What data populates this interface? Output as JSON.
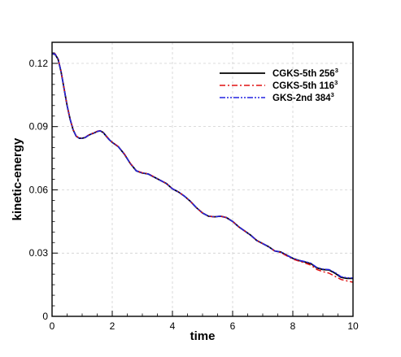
{
  "chart_data": {
    "type": "line",
    "title": "",
    "xlabel": "time",
    "ylabel": "kinetic-energy",
    "xlim": [
      0,
      10
    ],
    "ylim": [
      0,
      0.13
    ],
    "xticks": [
      0,
      2,
      4,
      6,
      8,
      10
    ],
    "xtick_labels": [
      "0",
      "2",
      "4",
      "6",
      "8",
      "10"
    ],
    "yticks": [
      0,
      0.03,
      0.06,
      0.09,
      0.12
    ],
    "ytick_labels": [
      "0",
      "0.03",
      "0.06",
      "0.09",
      "0.12"
    ],
    "grid": true,
    "legend_position": "top-right",
    "series": [
      {
        "name": "CGKS-5th 256",
        "name_sup": "3",
        "color": "#000000",
        "style": "solid",
        "x": [
          0,
          0.1,
          0.2,
          0.3,
          0.4,
          0.5,
          0.6,
          0.7,
          0.8,
          0.9,
          1.0,
          1.1,
          1.2,
          1.3,
          1.4,
          1.5,
          1.6,
          1.7,
          1.8,
          1.9,
          2.0,
          2.2,
          2.4,
          2.6,
          2.8,
          3.0,
          3.2,
          3.4,
          3.6,
          3.8,
          4.0,
          4.2,
          4.4,
          4.6,
          4.8,
          5.0,
          5.2,
          5.4,
          5.6,
          5.8,
          6.0,
          6.2,
          6.4,
          6.6,
          6.8,
          7.0,
          7.2,
          7.4,
          7.6,
          7.8,
          8.0,
          8.2,
          8.4,
          8.6,
          8.8,
          9.0,
          9.2,
          9.4,
          9.6,
          9.8,
          10.0
        ],
        "y": [
          0.1245,
          0.1243,
          0.122,
          0.116,
          0.108,
          0.1,
          0.0935,
          0.0885,
          0.0855,
          0.0845,
          0.0845,
          0.0848,
          0.0858,
          0.0865,
          0.087,
          0.0877,
          0.088,
          0.0872,
          0.0855,
          0.0838,
          0.0825,
          0.0805,
          0.077,
          0.0725,
          0.069,
          0.068,
          0.0675,
          0.066,
          0.0645,
          0.063,
          0.0605,
          0.059,
          0.057,
          0.0545,
          0.0515,
          0.049,
          0.0475,
          0.0472,
          0.0475,
          0.0468,
          0.045,
          0.0425,
          0.0405,
          0.0385,
          0.036,
          0.0345,
          0.033,
          0.031,
          0.0305,
          0.029,
          0.0275,
          0.0265,
          0.0258,
          0.025,
          0.023,
          0.0222,
          0.022,
          0.0205,
          0.0185,
          0.018,
          0.018
        ]
      },
      {
        "name": "CGKS-5th 116",
        "name_sup": "3",
        "color": "#e01010",
        "style": "dashdot",
        "x": [
          0,
          0.1,
          0.2,
          0.3,
          0.4,
          0.5,
          0.6,
          0.7,
          0.8,
          0.9,
          1.0,
          1.1,
          1.2,
          1.3,
          1.4,
          1.5,
          1.6,
          1.7,
          1.8,
          1.9,
          2.0,
          2.2,
          2.4,
          2.6,
          2.8,
          3.0,
          3.2,
          3.4,
          3.6,
          3.8,
          4.0,
          4.2,
          4.4,
          4.6,
          4.8,
          5.0,
          5.2,
          5.4,
          5.6,
          5.8,
          6.0,
          6.2,
          6.4,
          6.6,
          6.8,
          7.0,
          7.2,
          7.4,
          7.6,
          7.8,
          8.0,
          8.2,
          8.4,
          8.6,
          8.8,
          9.0,
          9.2,
          9.4,
          9.6,
          9.8,
          10.0
        ],
        "y": [
          0.1248,
          0.1246,
          0.1222,
          0.1162,
          0.1081,
          0.1001,
          0.0936,
          0.0886,
          0.0856,
          0.0846,
          0.0846,
          0.0849,
          0.0859,
          0.0866,
          0.0871,
          0.0878,
          0.0881,
          0.0873,
          0.0856,
          0.0839,
          0.0826,
          0.0806,
          0.0771,
          0.0726,
          0.0691,
          0.0681,
          0.0676,
          0.0661,
          0.0645,
          0.063,
          0.0605,
          0.059,
          0.057,
          0.0545,
          0.0515,
          0.049,
          0.0475,
          0.0472,
          0.0475,
          0.0468,
          0.045,
          0.0425,
          0.0405,
          0.0385,
          0.036,
          0.0345,
          0.033,
          0.031,
          0.0302,
          0.0287,
          0.0272,
          0.0262,
          0.0253,
          0.0243,
          0.0222,
          0.0212,
          0.0205,
          0.019,
          0.0175,
          0.0168,
          0.0162
        ]
      },
      {
        "name": "GKS-2nd 384",
        "name_sup": "3",
        "color": "#2424e0",
        "style": "dashdotdot",
        "x": [
          0,
          0.1,
          0.2,
          0.3,
          0.4,
          0.5,
          0.6,
          0.7,
          0.8,
          0.9,
          1.0,
          1.1,
          1.2,
          1.3,
          1.4,
          1.5,
          1.6,
          1.7,
          1.8,
          1.9,
          2.0,
          2.2,
          2.4,
          2.6,
          2.8,
          3.0,
          3.2,
          3.4,
          3.6,
          3.8,
          4.0,
          4.2,
          4.4,
          4.6,
          4.8,
          5.0,
          5.2,
          5.4,
          5.6,
          5.8,
          6.0,
          6.2,
          6.4,
          6.6,
          6.8,
          7.0,
          7.2,
          7.4,
          7.6,
          7.8,
          8.0,
          8.2,
          8.4,
          8.6,
          8.8,
          9.0,
          9.2,
          9.4,
          9.6,
          9.8,
          10.0
        ],
        "y": [
          0.1246,
          0.1244,
          0.1221,
          0.1161,
          0.108,
          0.1,
          0.0935,
          0.0885,
          0.0855,
          0.0845,
          0.0845,
          0.0848,
          0.0858,
          0.0865,
          0.087,
          0.0877,
          0.088,
          0.0872,
          0.0855,
          0.0838,
          0.0825,
          0.0805,
          0.077,
          0.0725,
          0.069,
          0.068,
          0.0675,
          0.066,
          0.0645,
          0.063,
          0.0605,
          0.059,
          0.057,
          0.0545,
          0.0515,
          0.049,
          0.0475,
          0.0472,
          0.0475,
          0.0468,
          0.045,
          0.0425,
          0.0405,
          0.0385,
          0.036,
          0.0345,
          0.033,
          0.031,
          0.0305,
          0.029,
          0.0275,
          0.0266,
          0.026,
          0.0252,
          0.0232,
          0.0224,
          0.0222,
          0.0208,
          0.0188,
          0.0183,
          0.0182
        ]
      }
    ]
  }
}
